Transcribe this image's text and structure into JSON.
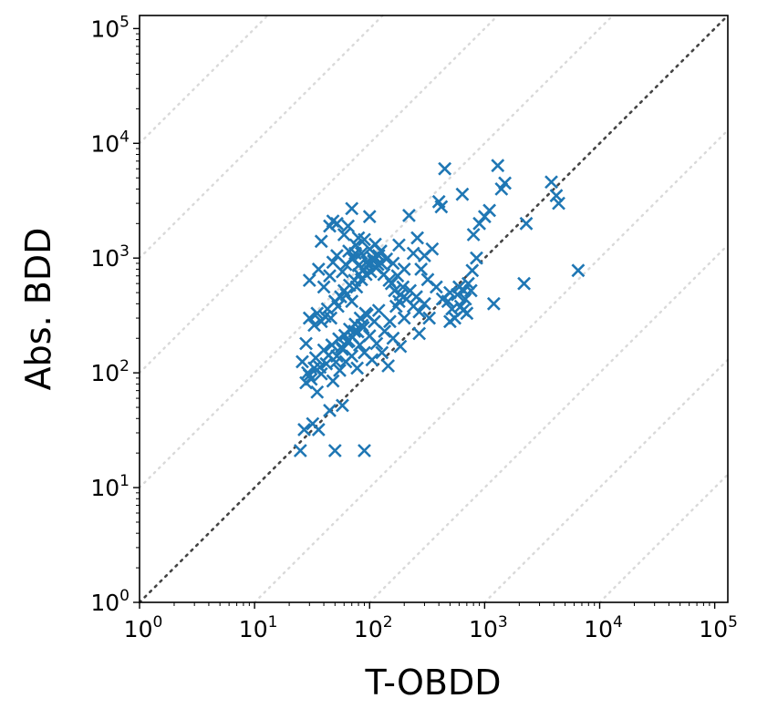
{
  "chart_data": {
    "type": "scatter",
    "title": "",
    "xlabel": "T-OBDD",
    "ylabel": "Abs. BDD",
    "xscale": "log",
    "yscale": "log",
    "xlim": [
      1,
      130000
    ],
    "ylim": [
      1,
      130000
    ],
    "xticks": [
      1,
      10,
      100,
      1000,
      10000,
      100000
    ],
    "yticks": [
      1,
      10,
      100,
      1000,
      10000,
      100000
    ],
    "tick_labels": [
      {
        "base": "10",
        "exp": "0"
      },
      {
        "base": "10",
        "exp": "1"
      },
      {
        "base": "10",
        "exp": "2"
      },
      {
        "base": "10",
        "exp": "3"
      },
      {
        "base": "10",
        "exp": "4"
      },
      {
        "base": "10",
        "exp": "5"
      }
    ],
    "marker": "x",
    "marker_color": "#1f77b4",
    "diagonal": {
      "style": "dotted",
      "color": "#444444"
    },
    "reference_lines": {
      "style": "dotted",
      "color": "#d9d9d9",
      "factors": [
        0.0001,
        0.001,
        0.01,
        0.1,
        10,
        100,
        1000,
        10000
      ]
    },
    "grid": false,
    "legend": "none",
    "points": [
      [
        25,
        21
      ],
      [
        50,
        21
      ],
      [
        90,
        21
      ],
      [
        27,
        32
      ],
      [
        32,
        36
      ],
      [
        36,
        32
      ],
      [
        45,
        47
      ],
      [
        58,
        52
      ],
      [
        35,
        68
      ],
      [
        28,
        82
      ],
      [
        30,
        95
      ],
      [
        33,
        110
      ],
      [
        38,
        98
      ],
      [
        42,
        120
      ],
      [
        48,
        85
      ],
      [
        52,
        140
      ],
      [
        55,
        105
      ],
      [
        58,
        160
      ],
      [
        62,
        125
      ],
      [
        66,
        190
      ],
      [
        70,
        140
      ],
      [
        74,
        230
      ],
      [
        78,
        110
      ],
      [
        82,
        175
      ],
      [
        86,
        260
      ],
      [
        90,
        150
      ],
      [
        95,
        320
      ],
      [
        100,
        210
      ],
      [
        105,
        130
      ],
      [
        110,
        280
      ],
      [
        115,
        180
      ],
      [
        120,
        350
      ],
      [
        128,
        150
      ],
      [
        135,
        230
      ],
      [
        145,
        115
      ],
      [
        150,
        280
      ],
      [
        160,
        200
      ],
      [
        170,
        380
      ],
      [
        185,
        170
      ],
      [
        200,
        300
      ],
      [
        26,
        125
      ],
      [
        29,
        100
      ],
      [
        31,
        88
      ],
      [
        34,
        135
      ],
      [
        37,
        112
      ],
      [
        40,
        158
      ],
      [
        44,
        142
      ],
      [
        47,
        175
      ],
      [
        51,
        124
      ],
      [
        54,
        198
      ],
      [
        57,
        168
      ],
      [
        61,
        212
      ],
      [
        64,
        186
      ],
      [
        67,
        240
      ],
      [
        71,
        205
      ],
      [
        75,
        265
      ],
      [
        79,
        228
      ],
      [
        83,
        300
      ],
      [
        88,
        248
      ],
      [
        92,
        330
      ],
      [
        28,
        180
      ],
      [
        30,
        300
      ],
      [
        33,
        260
      ],
      [
        35,
        330
      ],
      [
        38,
        280
      ],
      [
        41,
        310
      ],
      [
        43,
        360
      ],
      [
        46,
        300
      ],
      [
        50,
        420
      ],
      [
        53,
        380
      ],
      [
        56,
        460
      ],
      [
        60,
        520
      ],
      [
        63,
        480
      ],
      [
        67,
        580
      ],
      [
        70,
        420
      ],
      [
        74,
        640
      ],
      [
        77,
        560
      ],
      [
        81,
        720
      ],
      [
        85,
        650
      ],
      [
        89,
        800
      ],
      [
        93,
        720
      ],
      [
        98,
        860
      ],
      [
        102,
        760
      ],
      [
        108,
        940
      ],
      [
        114,
        820
      ],
      [
        120,
        1050
      ],
      [
        126,
        900
      ],
      [
        133,
        720
      ],
      [
        140,
        980
      ],
      [
        148,
        640
      ],
      [
        30,
        640
      ],
      [
        36,
        800
      ],
      [
        40,
        560
      ],
      [
        45,
        700
      ],
      [
        48,
        920
      ],
      [
        52,
        1050
      ],
      [
        58,
        760
      ],
      [
        62,
        880
      ],
      [
        66,
        1150
      ],
      [
        72,
        990
      ],
      [
        76,
        1300
      ],
      [
        80,
        860
      ],
      [
        85,
        1100
      ],
      [
        90,
        1450
      ],
      [
        95,
        930
      ],
      [
        100,
        1200
      ],
      [
        107,
        1000
      ],
      [
        112,
        1320
      ],
      [
        118,
        880
      ],
      [
        125,
        1150
      ],
      [
        38,
        1400
      ],
      [
        45,
        1900
      ],
      [
        48,
        2100
      ],
      [
        52,
        2000
      ],
      [
        60,
        1600
      ],
      [
        65,
        1900
      ],
      [
        70,
        2700
      ],
      [
        80,
        1500
      ],
      [
        100,
        2300
      ],
      [
        75,
        1100
      ],
      [
        155,
        600
      ],
      [
        165,
        520
      ],
      [
        175,
        700
      ],
      [
        185,
        480
      ],
      [
        195,
        560
      ],
      [
        210,
        440
      ],
      [
        225,
        520
      ],
      [
        240,
        380
      ],
      [
        255,
        460
      ],
      [
        270,
        340
      ],
      [
        160,
        900
      ],
      [
        180,
        1300
      ],
      [
        200,
        800
      ],
      [
        220,
        2350
      ],
      [
        240,
        1100
      ],
      [
        260,
        1500
      ],
      [
        280,
        800
      ],
      [
        300,
        1050
      ],
      [
        320,
        650
      ],
      [
        350,
        1200
      ],
      [
        380,
        560
      ],
      [
        400,
        3100
      ],
      [
        420,
        2800
      ],
      [
        450,
        6000
      ],
      [
        480,
        420
      ],
      [
        500,
        280
      ],
      [
        520,
        360
      ],
      [
        550,
        300
      ],
      [
        580,
        480
      ],
      [
        620,
        380
      ],
      [
        640,
        3600
      ],
      [
        660,
        520
      ],
      [
        680,
        440
      ],
      [
        700,
        330
      ],
      [
        720,
        600
      ],
      [
        760,
        520
      ],
      [
        780,
        780
      ],
      [
        800,
        1600
      ],
      [
        850,
        1000
      ],
      [
        900,
        2000
      ],
      [
        1000,
        2300
      ],
      [
        1100,
        2600
      ],
      [
        1200,
        400
      ],
      [
        1300,
        6400
      ],
      [
        1400,
        4000
      ],
      [
        1500,
        4500
      ],
      [
        2200,
        600
      ],
      [
        2300,
        2000
      ],
      [
        3800,
        4600
      ],
      [
        4200,
        3500
      ],
      [
        4400,
        3000
      ],
      [
        6500,
        780
      ],
      [
        270,
        220
      ],
      [
        300,
        400
      ],
      [
        330,
        300
      ],
      [
        600,
        560
      ],
      [
        650,
        350
      ],
      [
        500,
        500
      ],
      [
        430,
        440
      ],
      [
        180,
        420
      ]
    ]
  }
}
